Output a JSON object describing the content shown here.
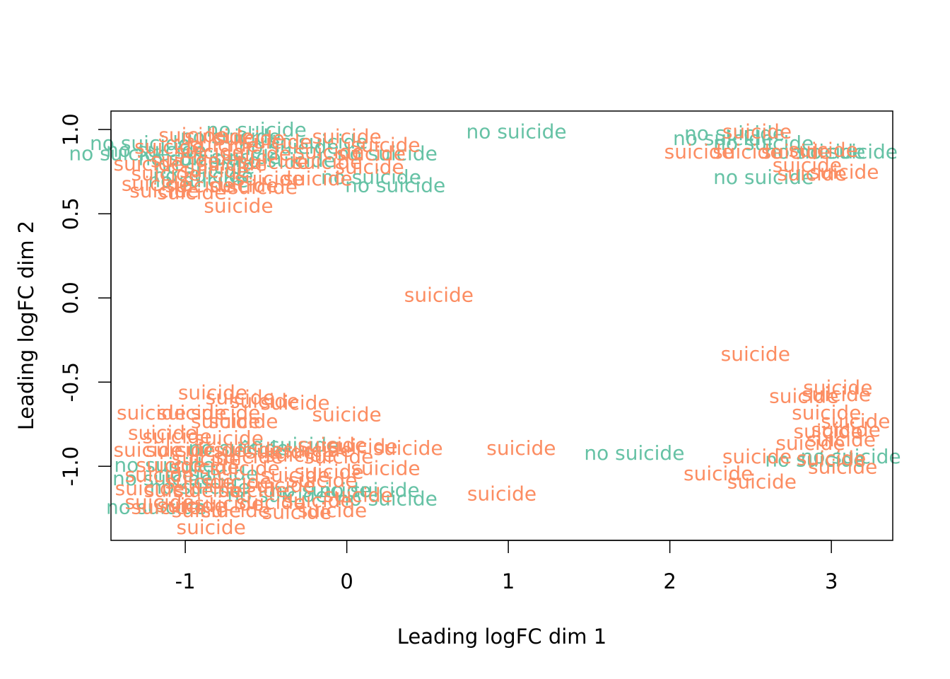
{
  "chart_data": {
    "type": "scatter",
    "title": "",
    "xlabel": "Leading logFC dim 1",
    "ylabel": "Leading logFC dim 2",
    "xlim": [
      -1.46,
      3.38
    ],
    "ylim": [
      -1.44,
      1.11
    ],
    "x_ticks": [
      -1,
      0,
      1,
      2,
      3
    ],
    "x_tick_labels": [
      "-1",
      "0",
      "1",
      "2",
      "3"
    ],
    "y_ticks": [
      -1.0,
      -0.5,
      0.0,
      0.5,
      1.0
    ],
    "y_tick_labels": [
      "-1.0",
      "-0.5",
      "0.0",
      "0.5",
      "1.0"
    ],
    "grid": false,
    "point_labels": [
      "no suicide",
      "suicide"
    ],
    "colors": {
      "no suicide": "#66C2A5",
      "suicide": "#FC8D62"
    },
    "series": [
      {
        "name": "no suicide",
        "color": "#66C2A5",
        "points": [
          [
            -0.56,
            1.0
          ],
          [
            -0.72,
            0.96
          ],
          [
            -1.28,
            0.92
          ],
          [
            -1.41,
            0.86
          ],
          [
            -1.18,
            0.88
          ],
          [
            -0.98,
            0.83
          ],
          [
            -0.72,
            0.84
          ],
          [
            -0.36,
            0.9
          ],
          [
            -0.18,
            0.93
          ],
          [
            0.25,
            0.86
          ],
          [
            -0.38,
            0.82
          ],
          [
            -0.88,
            0.78
          ],
          [
            -0.89,
            0.73
          ],
          [
            -0.92,
            0.7
          ],
          [
            0.15,
            0.72
          ],
          [
            0.3,
            0.67
          ],
          [
            1.05,
            0.99
          ],
          [
            2.33,
            0.95
          ],
          [
            2.4,
            0.98
          ],
          [
            2.58,
            0.92
          ],
          [
            2.9,
            0.87
          ],
          [
            3.1,
            0.87
          ],
          [
            2.58,
            0.72
          ],
          [
            -0.67,
            -0.89
          ],
          [
            -0.36,
            -0.87
          ],
          [
            -1.13,
            -0.99
          ],
          [
            -0.86,
            -1.04
          ],
          [
            -1.14,
            -1.07
          ],
          [
            -0.91,
            -1.12
          ],
          [
            -0.43,
            -1.17
          ],
          [
            -0.16,
            -1.14
          ],
          [
            0.14,
            -1.14
          ],
          [
            0.25,
            -1.19
          ],
          [
            -1.18,
            -1.24
          ],
          [
            1.78,
            -0.92
          ],
          [
            2.9,
            -0.96
          ],
          [
            3.12,
            -0.94
          ]
        ]
      },
      {
        "name": "suicide",
        "color": "#FC8D62",
        "points": [
          [
            -0.95,
            0.97
          ],
          [
            -0.79,
            0.96
          ],
          [
            -0.6,
            0.95
          ],
          [
            0.0,
            0.96
          ],
          [
            0.24,
            0.91
          ],
          [
            -0.43,
            0.93
          ],
          [
            -0.76,
            0.91
          ],
          [
            -1.1,
            0.9
          ],
          [
            0.15,
            0.86
          ],
          [
            -0.85,
            0.87
          ],
          [
            -0.56,
            0.86
          ],
          [
            -0.11,
            0.87
          ],
          [
            -1.23,
            0.8
          ],
          [
            -1.0,
            0.82
          ],
          [
            -0.71,
            0.8
          ],
          [
            -0.45,
            0.81
          ],
          [
            -0.12,
            0.81
          ],
          [
            0.14,
            0.78
          ],
          [
            -1.12,
            0.74
          ],
          [
            -0.82,
            0.76
          ],
          [
            -0.48,
            0.71
          ],
          [
            -0.18,
            0.71
          ],
          [
            -1.18,
            0.68
          ],
          [
            -0.91,
            0.67
          ],
          [
            -0.64,
            0.67
          ],
          [
            -1.13,
            0.64
          ],
          [
            -0.52,
            0.66
          ],
          [
            -0.96,
            0.63
          ],
          [
            -0.67,
            0.55
          ],
          [
            2.54,
            0.99
          ],
          [
            2.18,
            0.87
          ],
          [
            2.48,
            0.87
          ],
          [
            2.78,
            0.87
          ],
          [
            2.95,
            0.88
          ],
          [
            2.85,
            0.79
          ],
          [
            3.08,
            0.75
          ],
          [
            2.88,
            0.74
          ],
          [
            0.57,
            0.02
          ],
          [
            2.53,
            -0.33
          ],
          [
            -0.83,
            -0.56
          ],
          [
            -0.66,
            -0.59
          ],
          [
            -0.51,
            -0.61
          ],
          [
            -0.32,
            -0.62
          ],
          [
            -1.21,
            -0.68
          ],
          [
            -0.96,
            -0.68
          ],
          [
            -0.75,
            -0.68
          ],
          [
            -0.75,
            -0.73
          ],
          [
            0.0,
            -0.69
          ],
          [
            -0.64,
            -0.73
          ],
          [
            -1.14,
            -0.8
          ],
          [
            -1.05,
            -0.82
          ],
          [
            -0.73,
            -0.83
          ],
          [
            -1.23,
            -0.9
          ],
          [
            -1.03,
            -0.9
          ],
          [
            -0.84,
            -0.9
          ],
          [
            -0.61,
            -0.9
          ],
          [
            -0.41,
            -0.91
          ],
          [
            -0.87,
            -0.95
          ],
          [
            -0.09,
            -0.87
          ],
          [
            0.1,
            -0.88
          ],
          [
            0.38,
            -0.89
          ],
          [
            -0.18,
            -0.9
          ],
          [
            -0.61,
            -0.94
          ],
          [
            -0.29,
            -0.93
          ],
          [
            -0.05,
            -0.94
          ],
          [
            1.08,
            -0.89
          ],
          [
            -1.09,
            -0.99
          ],
          [
            -0.88,
            -1.0
          ],
          [
            -0.63,
            -1.01
          ],
          [
            -0.32,
            -1.05
          ],
          [
            -0.11,
            -1.03
          ],
          [
            0.24,
            -1.01
          ],
          [
            -1.16,
            -1.05
          ],
          [
            -0.91,
            -1.09
          ],
          [
            -0.68,
            -1.09
          ],
          [
            -0.41,
            -1.11
          ],
          [
            -0.15,
            -1.08
          ],
          [
            -1.22,
            -1.13
          ],
          [
            -1.04,
            -1.14
          ],
          [
            -0.86,
            -1.14
          ],
          [
            -0.58,
            -1.14
          ],
          [
            0.07,
            -1.17
          ],
          [
            0.96,
            -1.16
          ],
          [
            -1.16,
            -1.21
          ],
          [
            -0.96,
            -1.23
          ],
          [
            -0.73,
            -1.22
          ],
          [
            -0.47,
            -1.21
          ],
          [
            -0.18,
            -1.2
          ],
          [
            -1.12,
            -1.24
          ],
          [
            -0.87,
            -1.26
          ],
          [
            -0.69,
            -1.26
          ],
          [
            -0.31,
            -1.27
          ],
          [
            -0.09,
            -1.26
          ],
          [
            -0.84,
            -1.36
          ],
          [
            3.04,
            -0.53
          ],
          [
            2.83,
            -0.58
          ],
          [
            3.03,
            -0.57
          ],
          [
            2.97,
            -0.68
          ],
          [
            3.15,
            -0.73
          ],
          [
            2.98,
            -0.79
          ],
          [
            3.09,
            -0.78
          ],
          [
            2.87,
            -0.86
          ],
          [
            3.06,
            -0.84
          ],
          [
            2.54,
            -0.94
          ],
          [
            2.3,
            -1.04
          ],
          [
            2.57,
            -1.09
          ],
          [
            3.07,
            -1.0
          ],
          [
            3.0,
            -0.95
          ]
        ]
      }
    ]
  }
}
